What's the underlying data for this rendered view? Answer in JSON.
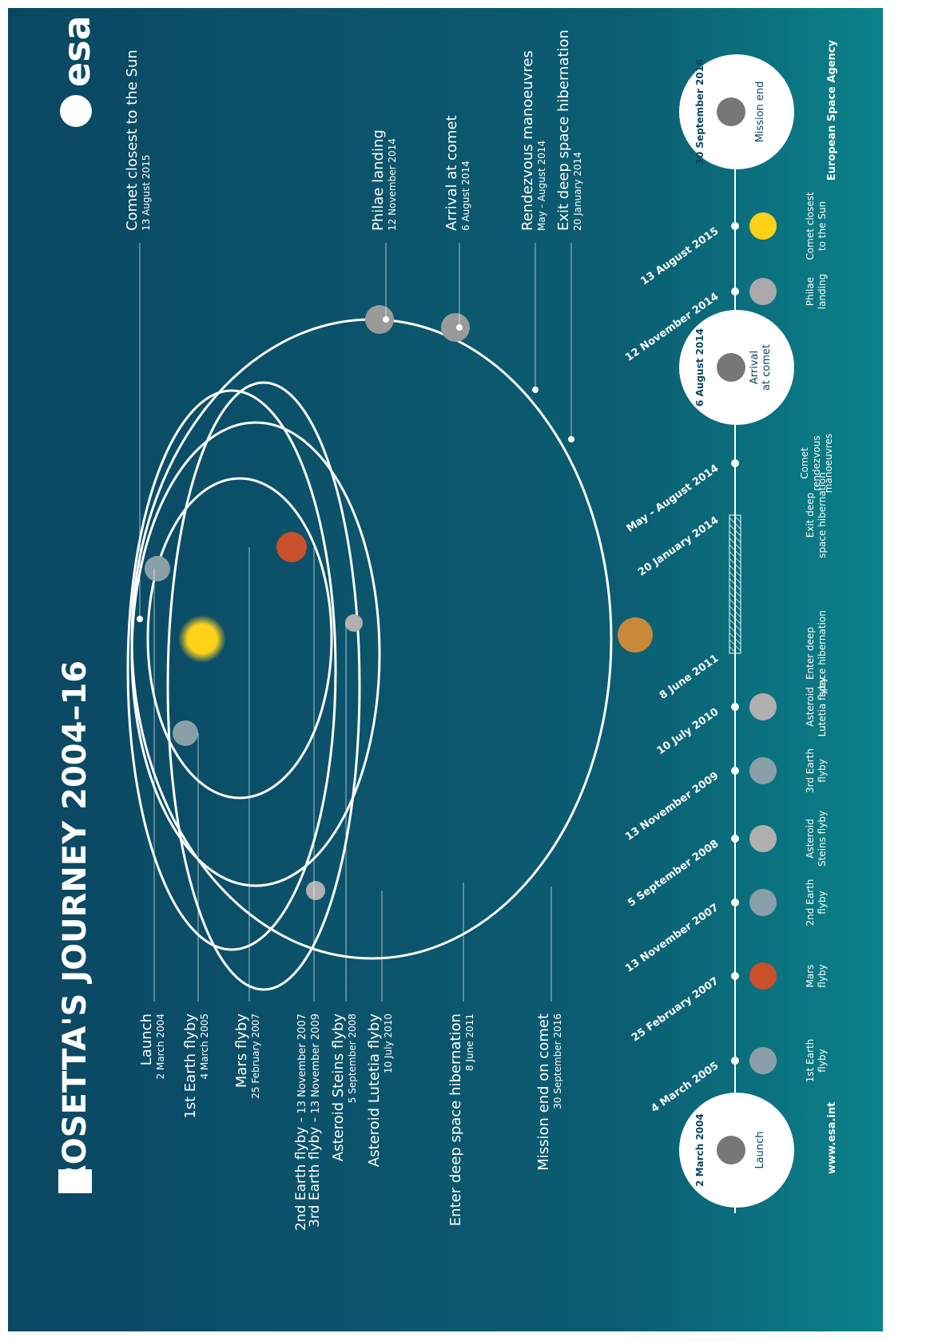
{
  "header": {
    "title": "ROSETTA'S JOURNEY 2004–16",
    "logo": "esa"
  },
  "left_labels": [
    {
      "label": "Launch",
      "date": "2 March 2004"
    },
    {
      "label": "1st Earth flyby",
      "date": "4 March 2005"
    },
    {
      "label": "Mars flyby",
      "date": "25 February 2007"
    },
    {
      "label": "2nd Earth flyby -",
      "date": "13 November 2007"
    },
    {
      "label": "3rd Earth flyby -",
      "date": "13 November 2009"
    },
    {
      "label": "Asteroid Steins flyby",
      "date": "5 September 2008"
    },
    {
      "label": "Asteroid Lutetia flyby",
      "date": "10 July 2010"
    },
    {
      "label": "Enter deep space hibernation",
      "date": "8 June 2011"
    },
    {
      "label": "Mission end on comet",
      "date": "30 September 2016"
    }
  ],
  "right_labels": [
    {
      "label": "Comet closest to the Sun",
      "date": "13 August 2015"
    },
    {
      "label": "Philae landing",
      "date": "12 November 2014"
    },
    {
      "label": "Arrival at comet",
      "date": "6 August 2014"
    },
    {
      "label": "Rendezvous manoeuvres",
      "date": "May - August 2014"
    },
    {
      "label": "Exit deep space hibernation",
      "date": "20 January 2014"
    }
  ],
  "timeline": [
    {
      "date": "2 March 2004",
      "lines": [
        "Launch"
      ]
    },
    {
      "date": "4 March 2005",
      "lines": [
        "1st Earth",
        "flyby"
      ]
    },
    {
      "date": "25 February 2007",
      "lines": [
        "Mars",
        "flyby"
      ]
    },
    {
      "date": "13 November 2007",
      "lines": [
        "2nd Earth",
        "flyby"
      ]
    },
    {
      "date": "5 September 2008",
      "lines": [
        "Asteroid",
        "Steins flyby"
      ]
    },
    {
      "date": "13 November 2009",
      "lines": [
        "3rd Earth",
        "flyby"
      ]
    },
    {
      "date": "10 July 2010",
      "lines": [
        "Asteroid",
        "Lutetia flyby"
      ]
    },
    {
      "date": "8 June 2011",
      "lines": [
        "Enter deep",
        "space hibernation"
      ]
    },
    {
      "date": "20 January 2014",
      "lines": [
        "Exit deep",
        "space hibernation"
      ]
    },
    {
      "date": "May - August 2014",
      "lines": [
        "Comet",
        "rendezvous",
        "manoeuvres"
      ]
    },
    {
      "date": "6 August 2014",
      "lines": [
        "Arrival",
        "at comet"
      ]
    },
    {
      "date": "12 November 2014",
      "lines": [
        "Philae",
        "landing"
      ]
    },
    {
      "date": "13 August 2015",
      "lines": [
        "Comet closest",
        "to the Sun"
      ]
    },
    {
      "date": "30 September 2016",
      "lines": [
        "Mission end"
      ]
    }
  ],
  "footer": {
    "left": "www.esa.int",
    "right": "European Space Agency"
  }
}
